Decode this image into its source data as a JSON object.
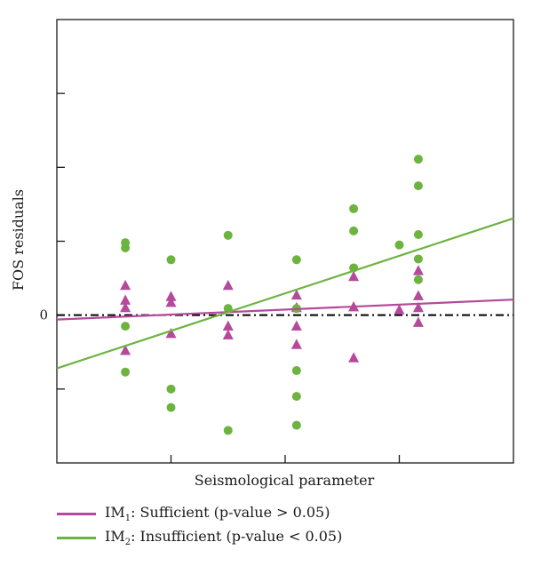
{
  "chart_data": {
    "type": "scatter",
    "title": "",
    "xlabel": "Seismological parameter",
    "ylabel": "FOS residuals",
    "xlim": [
      0,
      12
    ],
    "ylim": [
      -2,
      4
    ],
    "yticks": [
      {
        "value": 0,
        "label": "0"
      }
    ],
    "unlabeled_yticks": [
      -1,
      1,
      2,
      3
    ],
    "unlabeled_xticks": [
      3,
      6,
      9
    ],
    "grid": false,
    "zero_line": {
      "y": 0,
      "style": "dash-dot",
      "color": "#000000"
    },
    "legend_position": "bottom-outside",
    "series": [
      {
        "key": "im1",
        "name_main": "IM",
        "name_sub": "1",
        "name_rest": ": Sufficient (p-value > 0.05)",
        "marker": "triangle",
        "color": "#b5499b",
        "points": [
          {
            "x": 1.8,
            "y": 0.4
          },
          {
            "x": 1.8,
            "y": 0.2
          },
          {
            "x": 1.8,
            "y": 0.1
          },
          {
            "x": 1.8,
            "y": -0.48
          },
          {
            "x": 3.0,
            "y": 0.25
          },
          {
            "x": 3.0,
            "y": 0.17
          },
          {
            "x": 3.0,
            "y": -0.25
          },
          {
            "x": 4.5,
            "y": 0.4
          },
          {
            "x": 4.5,
            "y": -0.15
          },
          {
            "x": 4.5,
            "y": -0.27
          },
          {
            "x": 6.3,
            "y": 0.27
          },
          {
            "x": 6.3,
            "y": 0.1
          },
          {
            "x": 6.3,
            "y": -0.15
          },
          {
            "x": 6.3,
            "y": -0.4
          },
          {
            "x": 7.8,
            "y": 0.52
          },
          {
            "x": 7.8,
            "y": 0.11
          },
          {
            "x": 7.8,
            "y": -0.58
          },
          {
            "x": 9.0,
            "y": 0.07
          },
          {
            "x": 9.5,
            "y": 0.6
          },
          {
            "x": 9.5,
            "y": 0.26
          },
          {
            "x": 9.5,
            "y": 0.1
          },
          {
            "x": 9.5,
            "y": -0.1
          }
        ],
        "fit_line": [
          {
            "x": 0,
            "y": -0.06
          },
          {
            "x": 12,
            "y": 0.21
          }
        ]
      },
      {
        "key": "im2",
        "name_main": "IM",
        "name_sub": "2",
        "name_rest": ": Insufficient (p-value < 0.05)",
        "marker": "circle",
        "color": "#6db33f",
        "points": [
          {
            "x": 1.8,
            "y": 0.98
          },
          {
            "x": 1.8,
            "y": 0.91
          },
          {
            "x": 1.8,
            "y": -0.15
          },
          {
            "x": 1.8,
            "y": -0.77
          },
          {
            "x": 3.0,
            "y": 0.75
          },
          {
            "x": 3.0,
            "y": -1.0
          },
          {
            "x": 3.0,
            "y": -1.25
          },
          {
            "x": 4.5,
            "y": 1.08
          },
          {
            "x": 4.5,
            "y": 0.09
          },
          {
            "x": 4.5,
            "y": -1.56
          },
          {
            "x": 6.3,
            "y": 0.75
          },
          {
            "x": 6.3,
            "y": 0.09
          },
          {
            "x": 6.3,
            "y": -0.75
          },
          {
            "x": 6.3,
            "y": -1.1
          },
          {
            "x": 6.3,
            "y": -1.49
          },
          {
            "x": 7.8,
            "y": 1.44
          },
          {
            "x": 7.8,
            "y": 1.14
          },
          {
            "x": 7.8,
            "y": 0.64
          },
          {
            "x": 9.0,
            "y": 0.95
          },
          {
            "x": 9.5,
            "y": 2.11
          },
          {
            "x": 9.5,
            "y": 1.75
          },
          {
            "x": 9.5,
            "y": 1.09
          },
          {
            "x": 9.5,
            "y": 0.76
          },
          {
            "x": 9.5,
            "y": 0.48
          }
        ],
        "fit_line": [
          {
            "x": 0,
            "y": -0.72
          },
          {
            "x": 12,
            "y": 1.31
          }
        ]
      }
    ]
  }
}
